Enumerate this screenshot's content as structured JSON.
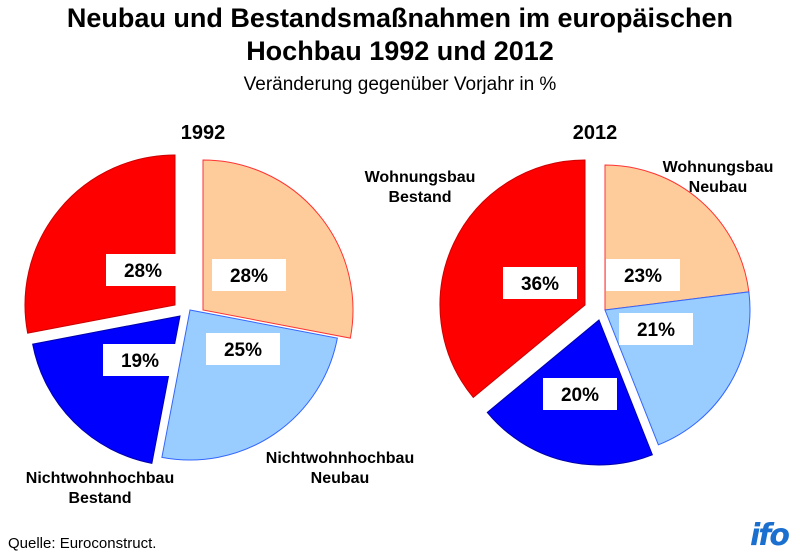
{
  "title_line1": "Neubau und Bestandsmaßnahmen im europäischen",
  "title_line2": "Hochbau 1992 und 2012",
  "subtitle": "Veränderung gegenüber Vorjahr in %",
  "source": "Quelle: Euroconstruct.",
  "logo_text": "ifo",
  "colors": {
    "Wohnungsbau Neubau": "#fdcc9a",
    "Nichtwohnhochbau Neubau": "#99ccff",
    "Nichtwohnhochbau Bestand": "#0000ff",
    "Wohnungsbau Bestand": "#ff0000"
  },
  "chart_data": [
    {
      "type": "pie",
      "title": "1992",
      "slices": [
        {
          "name": "Wohnungsbau Neubau",
          "value": 28,
          "label": "28%"
        },
        {
          "name": "Nichtwohnhochbau Neubau",
          "value": 25,
          "label": "25%"
        },
        {
          "name": "Nichtwohnhochbau Bestand",
          "value": 19,
          "label": "19%"
        },
        {
          "name": "Wohnungsbau Bestand",
          "value": 28,
          "label": "28%"
        }
      ],
      "category_labels": [
        {
          "lines": [
            "Nichtwohnhochbau",
            "Neubau"
          ]
        },
        {
          "lines": [
            "Nichtwohnhochbau",
            "Bestand"
          ]
        }
      ]
    },
    {
      "type": "pie",
      "title": "2012",
      "slices": [
        {
          "name": "Wohnungsbau Neubau",
          "value": 23,
          "label": "23%"
        },
        {
          "name": "Nichtwohnhochbau Neubau",
          "value": 21,
          "label": "21%"
        },
        {
          "name": "Nichtwohnhochbau Bestand",
          "value": 20,
          "label": "20%"
        },
        {
          "name": "Wohnungsbau Bestand",
          "value": 36,
          "label": "36%"
        }
      ],
      "category_labels": [
        {
          "lines": [
            "Wohnungsbau",
            "Bestand"
          ]
        },
        {
          "lines": [
            "Wohnungsbau",
            "Neubau"
          ]
        }
      ]
    }
  ]
}
